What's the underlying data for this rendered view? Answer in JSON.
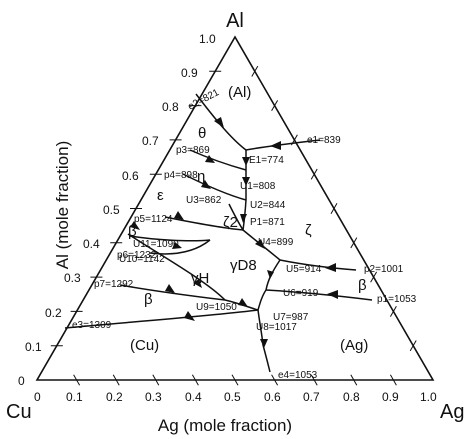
{
  "corners": {
    "top": "Al",
    "left": "Cu",
    "right": "Ag"
  },
  "axes": {
    "left": "Al (mole fraction)",
    "bottom": "Ag (mole fraction)"
  },
  "ticks": {
    "left": [
      "0",
      "0.1",
      "0.2",
      "0.3",
      "0.4",
      "0.5",
      "0.6",
      "0.7",
      "0.8",
      "0.9",
      "1.0"
    ],
    "bottom": [
      "0",
      "0.1",
      "0.2",
      "0.3",
      "0.4",
      "0.5",
      "0.6",
      "0.7",
      "0.8",
      "0.9",
      "1.0"
    ]
  },
  "phases": {
    "al": "(Al)",
    "theta": "θ",
    "eta": "η",
    "epsilon": "ε",
    "zeta2": "ζ2",
    "zeta": "ζ",
    "beta_left": "β",
    "gammaH": "γH",
    "gammaD8": "γD8",
    "beta_bottom": "β",
    "beta_right": "β",
    "cu": "(Cu)",
    "ag": "(Ag)"
  },
  "points": {
    "e2": "e2=821",
    "p3": "p3=869",
    "p4": "p4=898",
    "p5": "p5=1124",
    "p6": "p6=1232",
    "p7": "p7=1292",
    "e3": "e3=1309",
    "e1": "e1=839",
    "E1": "E1=774",
    "U1": "U1=808",
    "U2": "U2=844",
    "U3": "U3=862",
    "P1": "P1=871",
    "U4": "U4=899",
    "U11": "U11=1090",
    "U10": "U10=1142",
    "U9": "U9=1050",
    "U5": "U5=914",
    "U6": "U6=919",
    "U7": "U7=987",
    "U8": "U8=1017",
    "p2": "p2=1001",
    "p1": "p1=1053",
    "e4": "e4=1053"
  }
}
